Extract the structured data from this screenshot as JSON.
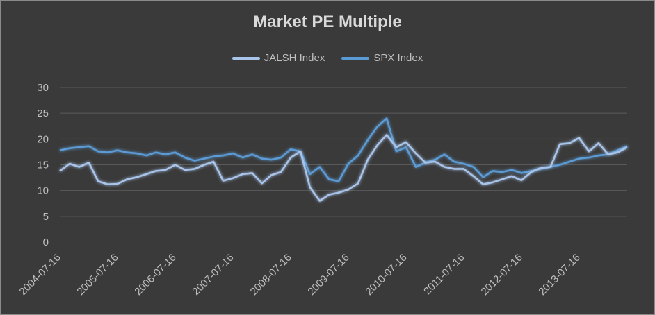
{
  "chart_data": {
    "type": "line",
    "title": "Market PE Multiple",
    "xlabel": "",
    "ylabel": "",
    "ylim": [
      0,
      30
    ],
    "yticks": [
      0,
      5,
      10,
      15,
      20,
      25,
      30
    ],
    "x_tick_labels": [
      "2004-07-16",
      "2005-07-16",
      "2006-07-16",
      "2007-07-16",
      "2008-07-16",
      "2009-07-16",
      "2010-07-16",
      "2011-07-16",
      "2012-07-16",
      "2013-07-16"
    ],
    "grid": true,
    "legend_position": "top",
    "x": [
      "2004-07-16",
      "2004-09-16",
      "2004-11-16",
      "2005-01-16",
      "2005-03-16",
      "2005-05-16",
      "2005-07-16",
      "2005-09-16",
      "2005-11-16",
      "2006-01-16",
      "2006-03-16",
      "2006-05-16",
      "2006-07-16",
      "2006-09-16",
      "2006-11-16",
      "2007-01-16",
      "2007-03-16",
      "2007-05-16",
      "2007-07-16",
      "2007-09-16",
      "2007-11-16",
      "2008-01-16",
      "2008-03-16",
      "2008-05-16",
      "2008-07-16",
      "2008-09-16",
      "2008-11-16",
      "2009-01-16",
      "2009-03-16",
      "2009-05-16",
      "2009-07-16",
      "2009-09-16",
      "2009-11-16",
      "2010-01-16",
      "2010-03-16",
      "2010-05-16",
      "2010-07-16",
      "2010-09-16",
      "2010-11-16",
      "2011-01-16",
      "2011-03-16",
      "2011-05-16",
      "2011-07-16",
      "2011-09-16",
      "2011-11-16",
      "2012-01-16",
      "2012-03-16",
      "2012-05-16",
      "2012-07-16",
      "2012-09-16",
      "2012-11-16",
      "2013-01-16",
      "2013-03-16",
      "2013-05-16",
      "2013-07-16",
      "2013-09-16",
      "2013-11-16",
      "2014-01-16",
      "2014-03-16",
      "2014-05-16"
    ],
    "series": [
      {
        "name": "JALSH Index",
        "color": "#a9c4ea",
        "values": [
          13.8,
          15.2,
          14.6,
          15.4,
          11.8,
          11.2,
          11.3,
          12.2,
          12.6,
          13.2,
          13.8,
          14.0,
          15.0,
          14.0,
          14.2,
          15.0,
          15.6,
          11.9,
          12.4,
          13.2,
          13.4,
          11.4,
          13.0,
          13.6,
          16.4,
          17.6,
          10.6,
          8.0,
          9.2,
          9.6,
          10.2,
          11.4,
          16.0,
          18.8,
          20.8,
          18.4,
          19.4,
          17.2,
          15.4,
          15.6,
          14.6,
          14.2,
          14.2,
          12.8,
          11.2,
          11.6,
          12.2,
          12.8,
          12.0,
          13.6,
          14.4,
          14.6,
          19.0,
          19.2,
          20.2,
          17.6,
          19.2,
          17.0,
          17.4,
          18.4
        ]
      },
      {
        "name": "SPX Index",
        "color": "#5b9bd5",
        "values": [
          17.8,
          18.2,
          18.4,
          18.6,
          17.6,
          17.4,
          17.8,
          17.4,
          17.2,
          16.8,
          17.4,
          17.0,
          17.4,
          16.4,
          15.8,
          16.2,
          16.6,
          16.8,
          17.2,
          16.4,
          17.0,
          16.2,
          16.0,
          16.4,
          18.0,
          17.6,
          13.2,
          14.6,
          12.2,
          11.8,
          15.2,
          16.8,
          19.8,
          22.4,
          24.0,
          17.6,
          18.4,
          14.6,
          15.4,
          16.0,
          17.0,
          15.6,
          15.2,
          14.6,
          12.6,
          13.8,
          13.6,
          14.0,
          13.4,
          13.8,
          14.2,
          14.6,
          15.0,
          15.6,
          16.2,
          16.4,
          16.8,
          17.0,
          17.8,
          18.6
        ]
      }
    ]
  }
}
